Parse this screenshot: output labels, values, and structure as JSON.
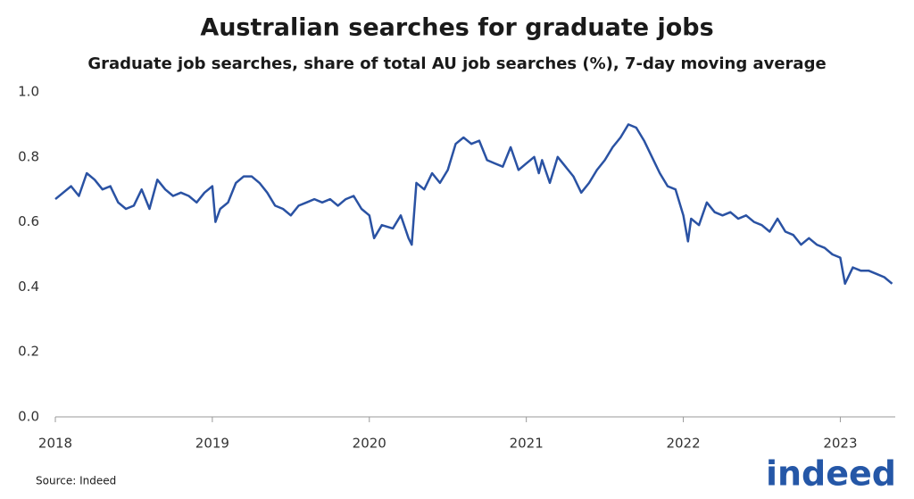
{
  "chart_data": {
    "type": "line",
    "title": "Australian searches for graduate jobs",
    "subtitle": "Graduate job searches, share of total AU job searches (%), 7-day moving average",
    "source": "Source: Indeed",
    "logo": "indeed",
    "color": "#2a52a3",
    "x": [
      2018.0,
      2018.05,
      2018.1,
      2018.15,
      2018.2,
      2018.25,
      2018.3,
      2018.35,
      2018.4,
      2018.45,
      2018.5,
      2018.55,
      2018.6,
      2018.65,
      2018.7,
      2018.75,
      2018.8,
      2018.85,
      2018.9,
      2018.95,
      2019.0,
      2019.02,
      2019.05,
      2019.1,
      2019.15,
      2019.2,
      2019.25,
      2019.3,
      2019.35,
      2019.4,
      2019.45,
      2019.5,
      2019.55,
      2019.6,
      2019.65,
      2019.7,
      2019.75,
      2019.8,
      2019.85,
      2019.9,
      2019.95,
      2020.0,
      2020.03,
      2020.08,
      2020.15,
      2020.2,
      2020.25,
      2020.27,
      2020.3,
      2020.35,
      2020.4,
      2020.45,
      2020.5,
      2020.55,
      2020.6,
      2020.65,
      2020.7,
      2020.75,
      2020.8,
      2020.85,
      2020.9,
      2020.95,
      2021.0,
      2021.05,
      2021.08,
      2021.1,
      2021.15,
      2021.2,
      2021.25,
      2021.3,
      2021.35,
      2021.4,
      2021.45,
      2021.5,
      2021.55,
      2021.6,
      2021.65,
      2021.7,
      2021.75,
      2021.8,
      2021.85,
      2021.9,
      2021.95,
      2022.0,
      2022.03,
      2022.05,
      2022.1,
      2022.15,
      2022.2,
      2022.25,
      2022.3,
      2022.35,
      2022.4,
      2022.45,
      2022.5,
      2022.55,
      2022.6,
      2022.65,
      2022.7,
      2022.75,
      2022.8,
      2022.85,
      2022.9,
      2022.95,
      2023.0,
      2023.03,
      2023.08,
      2023.13,
      2023.18,
      2023.23,
      2023.28,
      2023.33
    ],
    "values": [
      0.67,
      0.69,
      0.71,
      0.68,
      0.75,
      0.73,
      0.7,
      0.71,
      0.66,
      0.64,
      0.65,
      0.7,
      0.64,
      0.73,
      0.7,
      0.68,
      0.69,
      0.68,
      0.66,
      0.69,
      0.71,
      0.6,
      0.64,
      0.66,
      0.72,
      0.74,
      0.74,
      0.72,
      0.69,
      0.65,
      0.64,
      0.62,
      0.65,
      0.66,
      0.67,
      0.66,
      0.67,
      0.65,
      0.67,
      0.68,
      0.64,
      0.62,
      0.55,
      0.59,
      0.58,
      0.62,
      0.55,
      0.53,
      0.72,
      0.7,
      0.75,
      0.72,
      0.76,
      0.84,
      0.86,
      0.84,
      0.85,
      0.79,
      0.78,
      0.77,
      0.83,
      0.76,
      0.78,
      0.8,
      0.75,
      0.79,
      0.72,
      0.8,
      0.77,
      0.74,
      0.69,
      0.72,
      0.76,
      0.79,
      0.83,
      0.86,
      0.9,
      0.89,
      0.85,
      0.8,
      0.75,
      0.71,
      0.7,
      0.62,
      0.54,
      0.61,
      0.59,
      0.66,
      0.63,
      0.62,
      0.63,
      0.61,
      0.62,
      0.6,
      0.59,
      0.57,
      0.61,
      0.57,
      0.56,
      0.53,
      0.55,
      0.53,
      0.52,
      0.5,
      0.49,
      0.41,
      0.46,
      0.45,
      0.45,
      0.44,
      0.43,
      0.41
    ],
    "xlim": [
      2018,
      2023.35
    ],
    "xticks": [
      2018,
      2019,
      2020,
      2021,
      2022,
      2023
    ],
    "ylim": [
      0,
      1
    ],
    "yticks": [
      {
        "value": 0,
        "label": "0.0"
      },
      {
        "value": 0.2,
        "label": "0.2"
      },
      {
        "value": 0.4,
        "label": "0.4"
      },
      {
        "value": 0.6,
        "label": "0.6"
      },
      {
        "value": 0.8,
        "label": "0.8"
      },
      {
        "value": 1,
        "label": "1.0"
      }
    ]
  }
}
